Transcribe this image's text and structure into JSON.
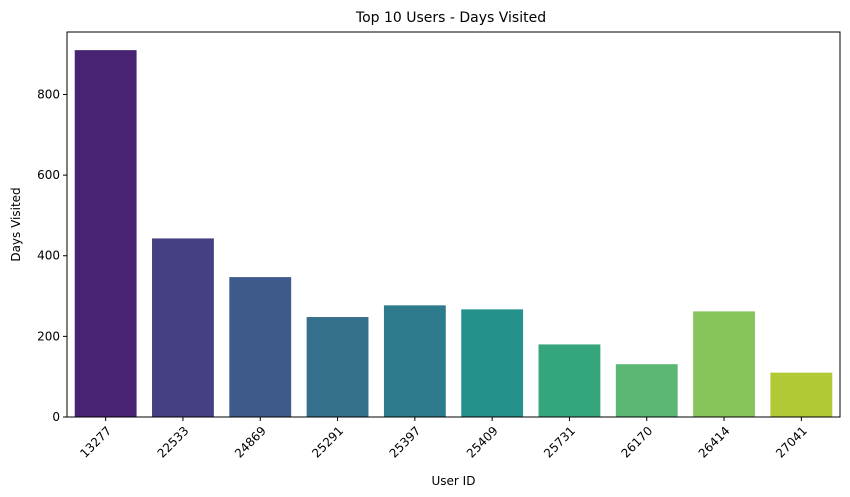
{
  "chart_data": {
    "type": "bar",
    "title": "Top 10 Users - Days Visited",
    "xlabel": "User ID",
    "ylabel": "Days Visited",
    "categories": [
      "13277",
      "22533",
      "24869",
      "25291",
      "25397",
      "25409",
      "25731",
      "26170",
      "26414",
      "27041"
    ],
    "values": [
      910,
      443,
      347,
      248,
      277,
      267,
      180,
      131,
      262,
      110
    ],
    "colors": [
      "#482374",
      "#453f84",
      "#3e5a8a",
      "#36708d",
      "#2e7b8e",
      "#25918b",
      "#35a67b",
      "#5cb674",
      "#88c45c",
      "#b0c934"
    ],
    "ylim": [
      0,
      955
    ],
    "yticks": [
      0,
      200,
      400,
      600,
      800
    ],
    "grid": false,
    "legend": "none"
  }
}
